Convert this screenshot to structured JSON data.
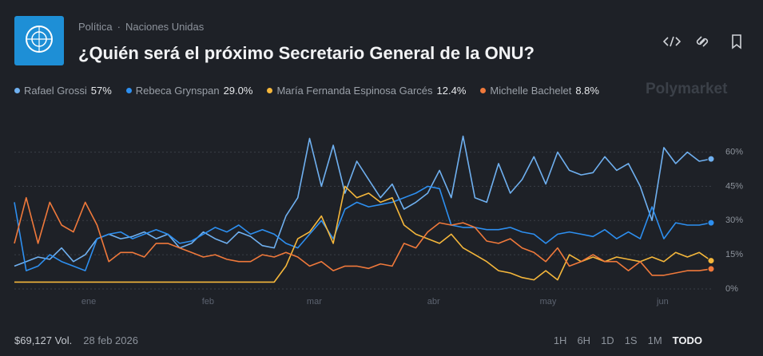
{
  "header": {
    "category": "Política",
    "subcategory": "Naciones Unidas",
    "title": "¿Quién será el próximo Secretario General de la ONU?",
    "brand": "Polymarket"
  },
  "chart_data": {
    "type": "line",
    "xlim": [
      0,
      59
    ],
    "xticks": [
      {
        "value": 6.3,
        "label": "ene"
      },
      {
        "value": 16.4,
        "label": "feb"
      },
      {
        "value": 25.4,
        "label": "mar"
      },
      {
        "value": 35.5,
        "label": "abr"
      },
      {
        "value": 45.2,
        "label": "may"
      },
      {
        "value": 54.9,
        "label": "jun"
      }
    ],
    "ylim": [
      0,
      70
    ],
    "yticks": [
      {
        "value": 0,
        "label": "0%"
      },
      {
        "value": 15,
        "label": "15%"
      },
      {
        "value": 30,
        "label": "30%"
      },
      {
        "value": 45,
        "label": "45%"
      },
      {
        "value": 60,
        "label": "60%"
      }
    ],
    "grid": true,
    "series": [
      {
        "name": "Rafael Grossi",
        "label": "57%",
        "color": "#6fb0f0",
        "values": [
          10,
          12,
          14,
          13,
          18,
          12,
          15,
          22,
          24,
          22,
          23,
          25,
          22,
          24,
          18,
          20,
          25,
          22,
          20,
          25,
          23,
          19,
          18,
          32,
          40,
          66,
          45,
          63,
          42,
          56,
          48,
          40,
          46,
          35,
          38,
          42,
          52,
          40,
          67,
          40,
          38,
          55,
          42,
          48,
          58,
          46,
          60,
          52,
          50,
          51,
          58,
          52,
          55,
          45,
          30,
          62,
          55,
          60,
          56,
          57
        ]
      },
      {
        "name": "Rebeca Grynspan",
        "label": "29.0%",
        "color": "#2d8ff0",
        "values": [
          38,
          8,
          10,
          15,
          12,
          10,
          8,
          22,
          24,
          25,
          22,
          24,
          26,
          24,
          20,
          21,
          24,
          27,
          25,
          28,
          24,
          26,
          24,
          20,
          18,
          24,
          30,
          22,
          35,
          38,
          36,
          37,
          38,
          40,
          42,
          45,
          44,
          28,
          27,
          27,
          26,
          26,
          27,
          25,
          24,
          20,
          24,
          25,
          24,
          23,
          26,
          22,
          25,
          22,
          36,
          22,
          29,
          28,
          28,
          29
        ]
      },
      {
        "name": "María Fernanda Espinosa Garcés",
        "label": "12.4%",
        "color": "#f5b73b",
        "values": [
          3,
          3,
          3,
          3,
          3,
          3,
          3,
          3,
          3,
          3,
          3,
          3,
          3,
          3,
          3,
          3,
          3,
          3,
          3,
          3,
          3,
          3,
          3,
          10,
          22,
          25,
          32,
          20,
          45,
          40,
          42,
          38,
          40,
          28,
          24,
          22,
          20,
          24,
          18,
          15,
          12,
          8,
          7,
          5,
          4,
          8,
          4,
          15,
          12,
          14,
          12,
          14,
          13,
          12,
          14,
          12,
          16,
          14,
          16,
          12.4
        ]
      },
      {
        "name": "Michelle Bachelet",
        "label": "8.8%",
        "color": "#f0793b",
        "values": [
          20,
          40,
          20,
          38,
          28,
          25,
          38,
          28,
          12,
          16,
          16,
          14,
          20,
          20,
          18,
          16,
          14,
          15,
          13,
          12,
          12,
          15,
          14,
          16,
          14,
          10,
          12,
          8,
          10,
          10,
          9,
          11,
          10,
          20,
          18,
          25,
          29,
          28,
          29,
          27,
          21,
          20,
          22,
          18,
          16,
          12,
          18,
          10,
          12,
          15,
          12,
          12,
          8,
          12,
          6,
          6,
          7,
          8,
          8,
          8.8
        ]
      }
    ]
  },
  "footer": {
    "volume": "$69,127 Vol.",
    "date": "28 feb 2026",
    "ranges": [
      "1H",
      "6H",
      "1D",
      "1S",
      "1M",
      "TODO"
    ]
  }
}
